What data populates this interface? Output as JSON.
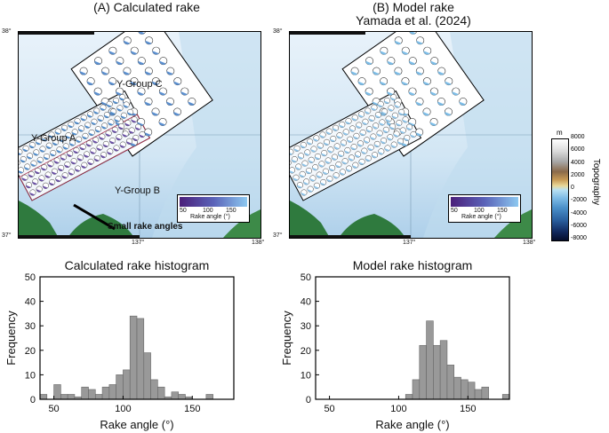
{
  "panel_a": {
    "title": "(A) Calculated rake",
    "lat_top": "38°",
    "lat_bottom": "37°",
    "lon_left": "137°",
    "lon_right": "138°",
    "groups": [
      "Y-Group C",
      "Y-Group A",
      "Y-Group B"
    ],
    "annotation": "Small rake angles",
    "legend_title": "Rake angle (°)",
    "legend_ticks": [
      "50",
      "100",
      "150"
    ]
  },
  "panel_b": {
    "title_line1": "(B) Model rake",
    "title_line2": "Yamada et al. (2024)",
    "lat_top": "38°",
    "lat_bottom": "37°",
    "lon_left": "137°",
    "lon_right": "138°",
    "legend_title": "Rake angle (°)",
    "legend_ticks": [
      "50",
      "100",
      "150"
    ]
  },
  "topo_bar": {
    "unit": "m",
    "label": "Topography",
    "ticks": [
      "8000",
      "6000",
      "4000",
      "2000",
      "0",
      "-2000",
      "-4000",
      "-6000",
      "-8000"
    ]
  },
  "colors": {
    "ocean_light": "#dfeef8",
    "ocean_mid": "#bcd9ee",
    "land": "#2f7a3e",
    "bar_fill": "#999999",
    "rake_low": "#4b1f7a",
    "rake_high": "#6fb4e8"
  },
  "chart_data": [
    {
      "type": "bar",
      "title": "Calculated rake histogram",
      "xlabel": "Rake angle (°)",
      "ylabel": "Frequency",
      "xlim": [
        40,
        180
      ],
      "ylim": [
        0,
        50
      ],
      "xticks": [
        50,
        100,
        150
      ],
      "yticks": [
        0,
        10,
        20,
        30,
        40,
        50
      ],
      "bin_width": 5,
      "bin_starts": [
        40,
        45,
        50,
        55,
        60,
        65,
        70,
        75,
        80,
        85,
        90,
        95,
        100,
        105,
        110,
        115,
        120,
        125,
        130,
        135,
        140,
        145,
        150,
        155,
        160,
        165,
        170,
        175
      ],
      "values": [
        2,
        0,
        6,
        2,
        2,
        1,
        5,
        4,
        2,
        5,
        6,
        10,
        12,
        34,
        33,
        19,
        8,
        5,
        1,
        3,
        2,
        1,
        0,
        0,
        2,
        0,
        0,
        0
      ]
    },
    {
      "type": "bar",
      "title": "Model rake histogram",
      "xlabel": "Rake angle (°)",
      "ylabel": "Frequency",
      "xlim": [
        40,
        180
      ],
      "ylim": [
        0,
        50
      ],
      "xticks": [
        50,
        100,
        150
      ],
      "yticks": [
        0,
        10,
        20,
        30,
        40,
        50
      ],
      "bin_width": 5,
      "bin_starts": [
        40,
        45,
        50,
        55,
        60,
        65,
        70,
        75,
        80,
        85,
        90,
        95,
        100,
        105,
        110,
        115,
        120,
        125,
        130,
        135,
        140,
        145,
        150,
        155,
        160,
        165,
        170,
        175
      ],
      "values": [
        0,
        0,
        0,
        0,
        0,
        0,
        0,
        0,
        0,
        0,
        0,
        0,
        0,
        2,
        8,
        22,
        32,
        22,
        24,
        14,
        9,
        8,
        7,
        4,
        5,
        0,
        0,
        2
      ]
    }
  ]
}
